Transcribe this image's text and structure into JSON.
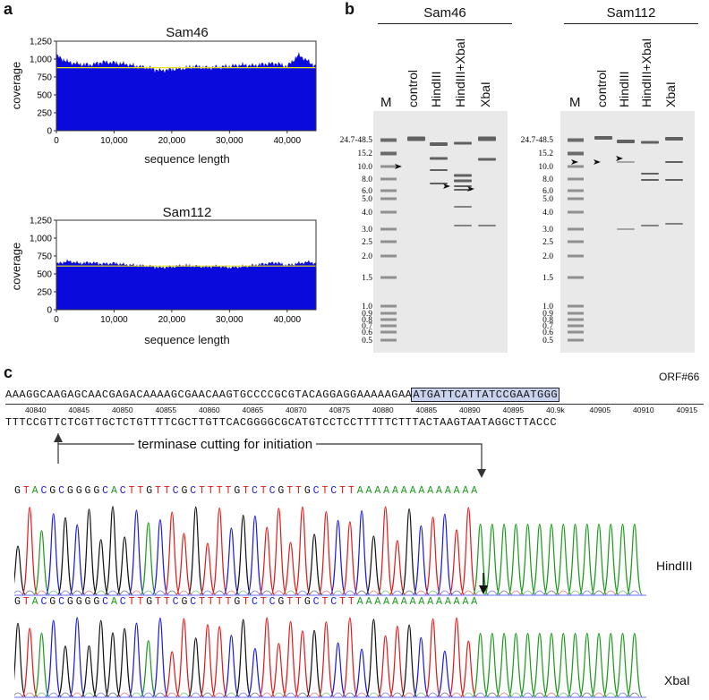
{
  "panel_labels": {
    "a": "a",
    "b": "b",
    "c": "c"
  },
  "chart_data": [
    {
      "type": "area",
      "title": "Sam46",
      "xlabel": "sequence length",
      "ylabel": "coverage",
      "xlim": [
        0,
        45000
      ],
      "ylim": [
        0,
        1250
      ],
      "x_ticks": [
        "0",
        "10,000",
        "20,000",
        "30,000",
        "40,000"
      ],
      "y_ticks": [
        "0",
        "250",
        "500",
        "750",
        "1,000",
        "1,250"
      ],
      "mean_line": 880,
      "x": [
        0,
        2000,
        4000,
        6000,
        8000,
        10000,
        12000,
        14000,
        16000,
        18000,
        20000,
        22000,
        24000,
        26000,
        28000,
        30000,
        32000,
        34000,
        36000,
        38000,
        40000,
        42000,
        44000,
        45000
      ],
      "values": [
        1050,
        960,
        930,
        920,
        960,
        950,
        930,
        900,
        880,
        840,
        860,
        870,
        900,
        880,
        890,
        900,
        920,
        910,
        930,
        940,
        900,
        1060,
        950,
        900
      ]
    },
    {
      "type": "area",
      "title": "Sam112",
      "xlabel": "sequence length",
      "ylabel": "coverage",
      "xlim": [
        0,
        45000
      ],
      "ylim": [
        0,
        1250
      ],
      "x_ticks": [
        "0",
        "10,000",
        "20,000",
        "30,000",
        "40,000"
      ],
      "y_ticks": [
        "0",
        "250",
        "500",
        "750",
        "1,000",
        "1,250"
      ],
      "mean_line": 610,
      "x": [
        0,
        2000,
        4000,
        6000,
        8000,
        10000,
        12000,
        14000,
        16000,
        18000,
        20000,
        22000,
        24000,
        26000,
        28000,
        30000,
        32000,
        34000,
        36000,
        38000,
        40000,
        42000,
        44000,
        45000
      ],
      "values": [
        640,
        680,
        650,
        660,
        640,
        650,
        630,
        620,
        610,
        590,
        600,
        620,
        610,
        600,
        610,
        590,
        600,
        620,
        640,
        660,
        620,
        650,
        670,
        640
      ]
    }
  ],
  "gels": [
    {
      "sample": "Sam46",
      "ladder_label": "M",
      "lanes": [
        "control",
        "HindIII",
        "HindIII+XbaI",
        "XbaI"
      ]
    },
    {
      "sample": "Sam112",
      "ladder_label": "M",
      "lanes": [
        "control",
        "HindIII",
        "HindIII+XbaI",
        "XbaI"
      ]
    }
  ],
  "ladder_marks": [
    "24.7-48.5",
    "15.2",
    "10.0",
    "8.0",
    "6.0",
    "5.0",
    "4.0",
    "3.0",
    "2.5",
    "2.0",
    "1.5",
    "1.0",
    "0.9",
    "0.8",
    "0.7",
    "0.6",
    "0.5"
  ],
  "sequence": {
    "orf_label": "ORF#66",
    "top_strand_main": "AAAGGCAAGAGCAACGAGACAAAAGCGAACAAGTGCCCCGCGTACAGGAGGAAAAAGAA",
    "top_strand_orf": "ATGATTCATTATCCGAATGGG",
    "positions": [
      "40840",
      "40845",
      "40850",
      "40855",
      "40860",
      "40865",
      "40870",
      "40875",
      "40880",
      "40885",
      "40890",
      "40895",
      "40.9k",
      "40905",
      "40910",
      "40915"
    ],
    "bottom_strand": "TTTCCGTTCTCGTTGCTCTGTTTTCGCTTGTTCACGGGGCGCATGTCCTCCTTTTTCTTTACTAAGTAATAGGCTTACCC",
    "annotation": "terminase cutting for initiation"
  },
  "chromatograms": [
    {
      "letters": "GTACGCGGGGCACTTGTTCGCTTTTGTCTCGTTGCTCTTAAAAAAAAAAAAAA",
      "label": "HindIII"
    },
    {
      "letters": "GTACGCGGGGCACTTGTTCGCTTTTGTCTCGTTGCTCTTAAAAAAAAAAAAAA",
      "label": "XbaI"
    }
  ],
  "colors": {
    "coverage_fill": "#0a0adc",
    "mean_line": "#e8e020",
    "orf_box": "#c9d3ee",
    "A": "#1a9a1a",
    "C": "#1a1ae0",
    "G": "#111111",
    "T": "#e01a1a"
  }
}
